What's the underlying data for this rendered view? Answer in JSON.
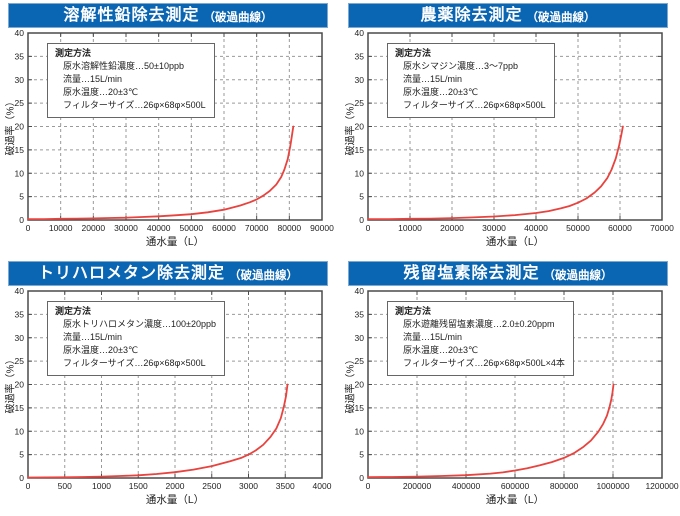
{
  "colors": {
    "titlebar_bg": "#0a65b2",
    "titlebar_text": "#ffffff",
    "curve": "#e8433e",
    "grid": "#9a9a9a",
    "plot_border": "#4a4a4a",
    "tick_text": "#222222"
  },
  "charts": [
    {
      "title": "溶解性鉛除去測定",
      "title_suffix": "（破過曲線）",
      "box": {
        "title": "測定方法",
        "lines": [
          "原水溶解性鉛濃度…50±10ppb",
          "流量…15L/min",
          "原水温度…20±3℃",
          "フィルターサイズ…26φ×68φ×500L"
        ]
      },
      "xlabel": "通水量（L）",
      "ylabel": "破過率（%）"
    },
    {
      "title": "農薬除去測定",
      "title_suffix": "（破過曲線）",
      "box": {
        "title": "測定方法",
        "lines": [
          "原水シマジン濃度…3〜7ppb",
          "流量…15L/min",
          "原水温度…20±3℃",
          "フィルターサイズ…26φ×68φ×500L"
        ]
      },
      "xlabel": "通水量（L）",
      "ylabel": "破過率（%）"
    },
    {
      "title": "トリハロメタン除去測定",
      "title_suffix": "（破過曲線）",
      "box": {
        "title": "測定方法",
        "lines": [
          "原水トリハロメタン濃度…100±20ppb",
          "流量…15L/min",
          "原水温度…20±3℃",
          "フィルターサイズ…26φ×68φ×500L"
        ]
      },
      "xlabel": "通水量（L）",
      "ylabel": "破過率（%）"
    },
    {
      "title": "残留塩素除去測定",
      "title_suffix": "（破過曲線）",
      "box": {
        "title": "測定方法",
        "lines": [
          "原水遊離残留塩素濃度…2.0±0.20ppm",
          "流量…15L/min",
          "原水温度…20±3℃",
          "フィルターサイズ…26φ×68φ×500L×4本"
        ]
      },
      "xlabel": "通水量（L）",
      "ylabel": "破過率（%）"
    }
  ],
  "chart_data": [
    {
      "type": "line",
      "title": "溶解性鉛除去測定（破過曲線）",
      "xlabel": "通水量（L）",
      "ylabel": "破過率（%）",
      "xlim": [
        0,
        90000
      ],
      "ylim": [
        0,
        40
      ],
      "xticks": [
        0,
        10000,
        20000,
        30000,
        40000,
        50000,
        60000,
        70000,
        80000,
        90000
      ],
      "yticks": [
        0,
        5,
        10,
        15,
        20,
        25,
        30,
        35,
        40
      ],
      "grid": true,
      "legend": false,
      "series": [
        {
          "name": "破過曲線",
          "color": "#e8433e",
          "points": [
            [
              0,
              0.2
            ],
            [
              5000,
              0.2
            ],
            [
              10000,
              0.25
            ],
            [
              15000,
              0.3
            ],
            [
              20000,
              0.35
            ],
            [
              25000,
              0.42
            ],
            [
              30000,
              0.5
            ],
            [
              35000,
              0.65
            ],
            [
              40000,
              0.8
            ],
            [
              45000,
              1.0
            ],
            [
              50000,
              1.25
            ],
            [
              55000,
              1.65
            ],
            [
              60000,
              2.2
            ],
            [
              65000,
              3.1
            ],
            [
              68000,
              3.8
            ],
            [
              70000,
              4.4
            ],
            [
              72000,
              5.2
            ],
            [
              74000,
              6.2
            ],
            [
              76000,
              7.6
            ],
            [
              77500,
              9.2
            ],
            [
              78500,
              10.8
            ],
            [
              79500,
              13.0
            ],
            [
              80300,
              15.8
            ],
            [
              80800,
              18.0
            ],
            [
              81200,
              20.0
            ]
          ]
        }
      ]
    },
    {
      "type": "line",
      "title": "農薬除去測定（破過曲線）",
      "xlabel": "通水量（L）",
      "ylabel": "破過率（%）",
      "xlim": [
        0,
        70000
      ],
      "ylim": [
        0,
        40
      ],
      "xticks": [
        0,
        10000,
        20000,
        30000,
        40000,
        50000,
        60000,
        70000
      ],
      "yticks": [
        0,
        5,
        10,
        15,
        20,
        25,
        30,
        35,
        40
      ],
      "grid": true,
      "legend": false,
      "series": [
        {
          "name": "破過曲線",
          "color": "#e8433e",
          "points": [
            [
              0,
              0.2
            ],
            [
              5000,
              0.2
            ],
            [
              10000,
              0.25
            ],
            [
              15000,
              0.3
            ],
            [
              20000,
              0.4
            ],
            [
              25000,
              0.55
            ],
            [
              30000,
              0.75
            ],
            [
              35000,
              1.05
            ],
            [
              40000,
              1.5
            ],
            [
              43000,
              1.9
            ],
            [
              46000,
              2.5
            ],
            [
              48000,
              3.0
            ],
            [
              50000,
              3.7
            ],
            [
              52000,
              4.6
            ],
            [
              54000,
              5.9
            ],
            [
              55500,
              7.2
            ],
            [
              57000,
              9.0
            ],
            [
              58000,
              10.8
            ],
            [
              59000,
              13.2
            ],
            [
              59800,
              16.0
            ],
            [
              60300,
              18.2
            ],
            [
              60700,
              20.0
            ]
          ]
        }
      ]
    },
    {
      "type": "line",
      "title": "トリハロメタン除去測定（破過曲線）",
      "xlabel": "通水量（L）",
      "ylabel": "破過率（%）",
      "xlim": [
        0,
        4000
      ],
      "ylim": [
        0,
        40
      ],
      "xticks": [
        0,
        500,
        1000,
        1500,
        2000,
        2500,
        3000,
        3500,
        4000
      ],
      "yticks": [
        0,
        5,
        10,
        15,
        20,
        25,
        30,
        35,
        40
      ],
      "grid": true,
      "legend": false,
      "series": [
        {
          "name": "破過曲線",
          "color": "#e8433e",
          "points": [
            [
              0,
              0.1
            ],
            [
              250,
              0.12
            ],
            [
              500,
              0.15
            ],
            [
              750,
              0.22
            ],
            [
              1000,
              0.3
            ],
            [
              1250,
              0.42
            ],
            [
              1500,
              0.58
            ],
            [
              1750,
              0.85
            ],
            [
              2000,
              1.25
            ],
            [
              2250,
              1.8
            ],
            [
              2500,
              2.55
            ],
            [
              2750,
              3.6
            ],
            [
              2900,
              4.3
            ],
            [
              3000,
              5.0
            ],
            [
              3100,
              5.9
            ],
            [
              3200,
              7.1
            ],
            [
              3300,
              8.8
            ],
            [
              3380,
              10.6
            ],
            [
              3440,
              12.8
            ],
            [
              3480,
              15.2
            ],
            [
              3510,
              17.5
            ],
            [
              3530,
              20.0
            ]
          ]
        }
      ]
    },
    {
      "type": "line",
      "title": "残留塩素除去測定（破過曲線）",
      "xlabel": "通水量（L）",
      "ylabel": "破過率（%）",
      "xlim": [
        0,
        1200000
      ],
      "ylim": [
        0,
        40
      ],
      "xticks": [
        0,
        200000,
        400000,
        600000,
        800000,
        1000000,
        1200000
      ],
      "yticks": [
        0,
        5,
        10,
        15,
        20,
        25,
        30,
        35,
        40
      ],
      "grid": true,
      "legend": false,
      "series": [
        {
          "name": "破過曲線",
          "color": "#e8433e",
          "points": [
            [
              0,
              0.2
            ],
            [
              100000,
              0.22
            ],
            [
              200000,
              0.3
            ],
            [
              300000,
              0.42
            ],
            [
              400000,
              0.6
            ],
            [
              500000,
              0.95
            ],
            [
              550000,
              1.2
            ],
            [
              600000,
              1.6
            ],
            [
              650000,
              2.1
            ],
            [
              700000,
              2.7
            ],
            [
              750000,
              3.4
            ],
            [
              800000,
              4.3
            ],
            [
              840000,
              5.3
            ],
            [
              880000,
              6.7
            ],
            [
              910000,
              8.0
            ],
            [
              940000,
              9.9
            ],
            [
              960000,
              11.6
            ],
            [
              975000,
              13.3
            ],
            [
              985000,
              15.0
            ],
            [
              993000,
              16.8
            ],
            [
              998000,
              18.3
            ],
            [
              1002000,
              20.0
            ]
          ]
        }
      ]
    }
  ]
}
